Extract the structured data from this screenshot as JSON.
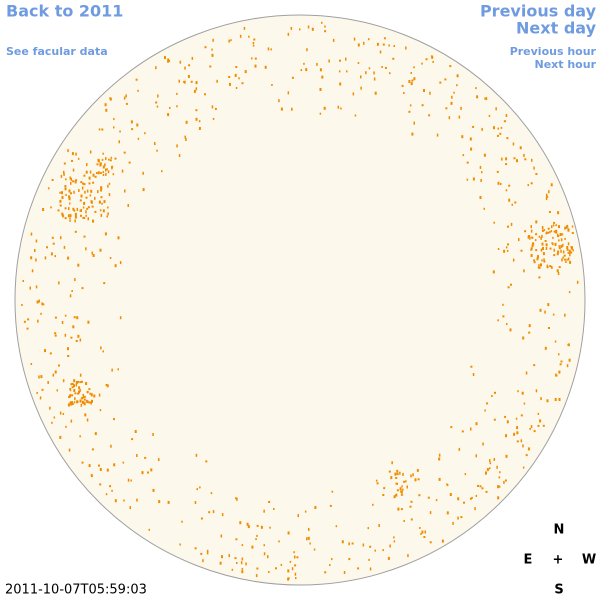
{
  "links": {
    "back": "Back to 2011",
    "facular": "See facular data",
    "previous_day": "Previous day",
    "next_day": "Next day",
    "previous_hour": "Previous hour",
    "next_hour": "Next hour"
  },
  "timestamp": "2011-10-07T05:59:03",
  "compass": {
    "north": "N",
    "east": "E",
    "center": "+",
    "west": "W",
    "south": "S"
  }
}
